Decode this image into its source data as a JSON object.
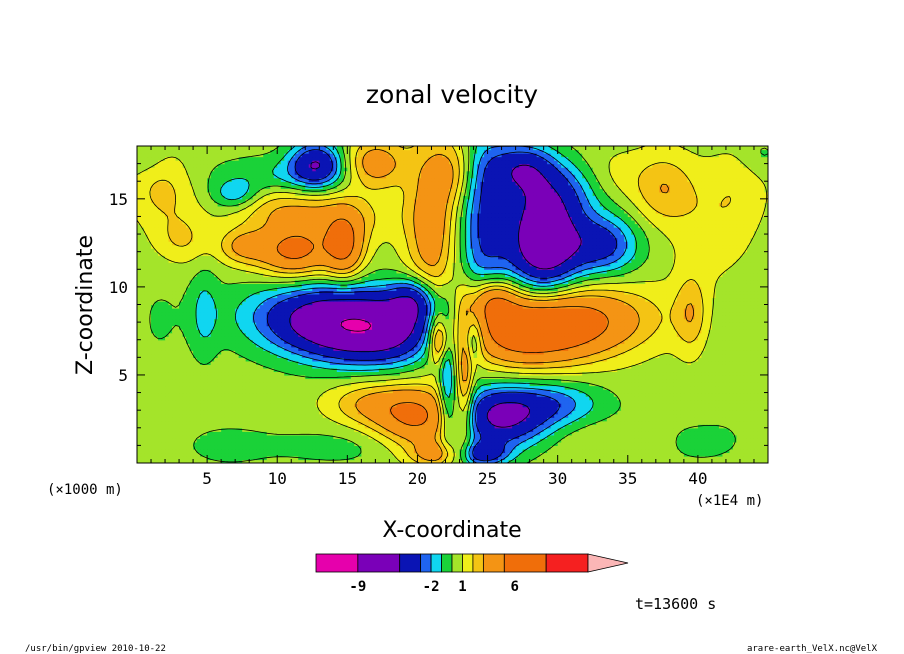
{
  "chart_data": {
    "type": "heatmap",
    "title": "zonal velocity",
    "xlabel": "X-coordinate",
    "ylabel": "Z-coordinate",
    "x_unit": "(×1E4 m)",
    "y_unit": "(×1000 m)",
    "xlim": [
      0,
      45
    ],
    "ylim": [
      0,
      18
    ],
    "x_ticks": [
      5,
      10,
      15,
      20,
      25,
      30,
      35,
      40
    ],
    "y_ticks": [
      5,
      10,
      15
    ],
    "colorbar": {
      "levels": [
        -13,
        -9,
        -5,
        -3,
        -2,
        -1,
        0,
        1,
        2,
        3,
        5,
        9,
        13
      ],
      "colors": [
        "#e600ac",
        "#7a00b8",
        "#0a14b4",
        "#1f64f0",
        "#10d6f0",
        "#1ad238",
        "#a4e42a",
        "#f0ee1a",
        "#f4c414",
        "#f49414",
        "#f06e0a",
        "#f52020",
        "#fb7a7a"
      ],
      "extend_color": "#fbb6b6",
      "tick_labels": [
        {
          "value": -9,
          "label": "-9"
        },
        {
          "value": -2,
          "label": "-2"
        },
        {
          "value": 1,
          "label": "1"
        },
        {
          "value": 6,
          "label": "6"
        }
      ]
    },
    "background_value": 0.5,
    "features": [
      {
        "x": 15.8,
        "z": 7.8,
        "sx": 4.5,
        "sz": 1.4,
        "amp": -10,
        "tilt": -0.06
      },
      {
        "x": 28.5,
        "z": 7.7,
        "sx": 4.8,
        "sz": 1.4,
        "amp": 8,
        "tilt": 0.06
      },
      {
        "x": 19.8,
        "z": 9.3,
        "sx": 1.2,
        "sz": 0.9,
        "amp": -4
      },
      {
        "x": 25.3,
        "z": 9.3,
        "sx": 1.2,
        "sz": 0.9,
        "amp": 4
      },
      {
        "x": 20.2,
        "z": 2.6,
        "sx": 2.2,
        "sz": 1.2,
        "amp": 5
      },
      {
        "x": 25.8,
        "z": 2.6,
        "sx": 2.4,
        "sz": 1.2,
        "amp": -6
      },
      {
        "x": 21.4,
        "z": 0.5,
        "sx": 1.3,
        "sz": 0.5,
        "amp": 3
      },
      {
        "x": 24.6,
        "z": 0.5,
        "sx": 1.3,
        "sz": 0.5,
        "amp": -4
      },
      {
        "x": 29.8,
        "z": 3.4,
        "sx": 2.5,
        "sz": 0.9,
        "amp": -2.6
      },
      {
        "x": 16.5,
        "z": 3.4,
        "sx": 2.2,
        "sz": 0.9,
        "amp": 2.3
      },
      {
        "x": 15.2,
        "z": 1.0,
        "sx": 3.0,
        "sz": 0.8,
        "amp": -0.8
      },
      {
        "x": 33.0,
        "z": 1.2,
        "sx": 2.5,
        "sz": 0.9,
        "amp": 0.6
      },
      {
        "x": 22.1,
        "z": 5.0,
        "sx": 0.4,
        "sz": 2.6,
        "amp": -3
      },
      {
        "x": 23.4,
        "z": 5.0,
        "sx": 0.4,
        "sz": 2.6,
        "amp": 3
      },
      {
        "x": 21.6,
        "z": 7.0,
        "sx": 0.5,
        "sz": 0.9,
        "amp": 4
      },
      {
        "x": 23.9,
        "z": 7.0,
        "sx": 0.5,
        "sz": 0.9,
        "amp": -3
      },
      {
        "x": 21.0,
        "z": 13.5,
        "sx": 1.3,
        "sz": 3.8,
        "amp": 3.5
      },
      {
        "x": 24.7,
        "z": 13.5,
        "sx": 1.3,
        "sz": 3.8,
        "amp": -3.5
      },
      {
        "x": 22.7,
        "z": 16.5,
        "sx": 1.0,
        "sz": 1.3,
        "amp": 2
      },
      {
        "x": 11.2,
        "z": 12.0,
        "sx": 1.9,
        "sz": 1.0,
        "amp": 5
      },
      {
        "x": 14.8,
        "z": 12.3,
        "sx": 1.0,
        "sz": 1.3,
        "amp": 4.5
      },
      {
        "x": 13.5,
        "z": 14.0,
        "sx": 3.2,
        "sz": 1.0,
        "amp": 2.2
      },
      {
        "x": 7.5,
        "z": 12.3,
        "sx": 1.2,
        "sz": 0.7,
        "amp": 2.5
      },
      {
        "x": 3.2,
        "z": 12.7,
        "sx": 1.4,
        "sz": 1.0,
        "amp": 1.6
      },
      {
        "x": 1.8,
        "z": 15.5,
        "sx": 1.6,
        "sz": 1.4,
        "amp": 1.8
      },
      {
        "x": 9.5,
        "z": 14.6,
        "sx": 2.5,
        "sz": 0.9,
        "amp": 1.4
      },
      {
        "x": 7.0,
        "z": 15.2,
        "sx": 1.2,
        "sz": 0.6,
        "amp": -2.4
      },
      {
        "x": 10.0,
        "z": 16.3,
        "sx": 3.5,
        "sz": 0.8,
        "amp": -1.5
      },
      {
        "x": 12.8,
        "z": 17.0,
        "sx": 1.3,
        "sz": 0.9,
        "amp": -5
      },
      {
        "x": 17.0,
        "z": 17.0,
        "sx": 1.5,
        "sz": 1.0,
        "amp": 3.5
      },
      {
        "x": 29.0,
        "z": 12.6,
        "sx": 1.8,
        "sz": 2.0,
        "amp": -8
      },
      {
        "x": 33.2,
        "z": 12.4,
        "sx": 1.8,
        "sz": 1.2,
        "amp": -4
      },
      {
        "x": 30.5,
        "z": 15.5,
        "sx": 3.0,
        "sz": 1.2,
        "amp": -2.5
      },
      {
        "x": 33.8,
        "z": 16.0,
        "sx": 1.7,
        "sz": 1.2,
        "amp": 1.6
      },
      {
        "x": 37.5,
        "z": 15.6,
        "sx": 1.5,
        "sz": 1.4,
        "amp": 2.4
      },
      {
        "x": 41.0,
        "z": 13.5,
        "sx": 2.0,
        "sz": 2.2,
        "amp": 1.2
      },
      {
        "x": 43.0,
        "z": 15.7,
        "sx": 1.5,
        "sz": 1.5,
        "amp": 0.9
      },
      {
        "x": 27.5,
        "z": 16.8,
        "sx": 1.6,
        "sz": 1.0,
        "amp": -4
      },
      {
        "x": 4.8,
        "z": 8.5,
        "sx": 0.7,
        "sz": 1.8,
        "amp": -1.5
      },
      {
        "x": 39.5,
        "z": 8.5,
        "sx": 0.8,
        "sz": 1.6,
        "amp": 2.0
      },
      {
        "x": 42.5,
        "z": 6.8,
        "sx": 1.2,
        "sz": 2.2,
        "amp": -0.5
      },
      {
        "x": 1.5,
        "z": 8.0,
        "sx": 1.5,
        "sz": 2.5,
        "amp": -0.5
      },
      {
        "x": 0.5,
        "z": 17.5,
        "sx": 1.0,
        "sz": 0.8,
        "amp": -0.8
      },
      {
        "x": 44.5,
        "z": 17.5,
        "sx": 1.0,
        "sz": 0.8,
        "amp": -0.8
      },
      {
        "x": 6.5,
        "z": 1.0,
        "sx": 4.0,
        "sz": 1.5,
        "amp": -0.6
      },
      {
        "x": 40.0,
        "z": 1.2,
        "sx": 4.0,
        "sz": 1.5,
        "amp": -0.6
      }
    ]
  },
  "time_label": "t=13600 s",
  "footer": {
    "left": "/usr/bin/gpview  2010-10-22",
    "right": "arare-earth_VelX.nc@VelX"
  }
}
